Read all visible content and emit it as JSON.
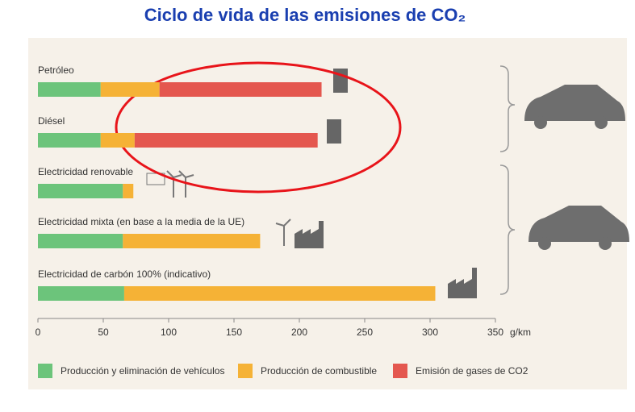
{
  "chart_data": {
    "type": "stacked-barh",
    "title": "Ciclo de vida de las emisiones de CO₂",
    "categories": [
      "Petróleo",
      "Diésel",
      "Electricidad renovable",
      "Electricidad mixta (en base a la media de la UE)",
      "Electricidad de carbón 100% (indicativo)"
    ],
    "series": [
      {
        "name": "Producción y eliminación de vehículos",
        "color": "#6cc47b",
        "values": [
          48,
          48,
          65,
          65,
          66
        ]
      },
      {
        "name": "Producción de combustible",
        "color": "#f5b236",
        "values": [
          45,
          26,
          8,
          105,
          238
        ]
      },
      {
        "name": "Emisión de gases de CO2",
        "color": "#e4574f",
        "values": [
          124,
          140,
          null,
          null,
          null
        ]
      }
    ],
    "xlabel": "g/km",
    "xlim": [
      0,
      350
    ],
    "xticks": [
      0,
      50,
      100,
      150,
      200,
      250,
      300,
      350
    ]
  }
}
